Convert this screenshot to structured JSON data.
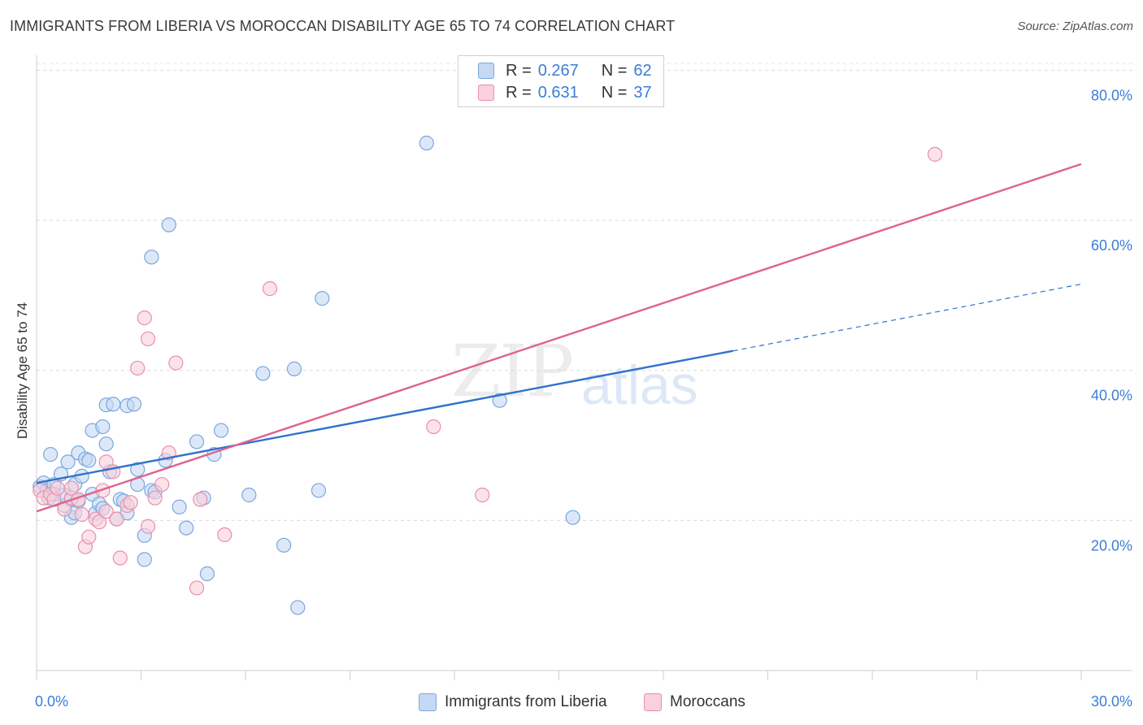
{
  "title": "IMMIGRANTS FROM LIBERIA VS MOROCCAN DISABILITY AGE 65 TO 74 CORRELATION CHART",
  "source": "Source: ZipAtlas.com",
  "watermark": {
    "zip": "ZIP",
    "atlas": "atlas"
  },
  "legend": {
    "rows": [
      {
        "r_label": "R =",
        "r_value": "0.267",
        "n_label": "N =",
        "n_value": "62",
        "color": "#a9c6ee"
      },
      {
        "r_label": "R =",
        "r_value": "0.631",
        "n_label": "N =",
        "n_value": "37",
        "color": "#f6b8cb"
      }
    ]
  },
  "bottom_legend": [
    {
      "label": "Immigrants from Liberia",
      "color": "#a9c6ee"
    },
    {
      "label": "Moroccans",
      "color": "#f6b8cb"
    }
  ],
  "chart_data": {
    "type": "scatter",
    "title": "IMMIGRANTS FROM LIBERIA VS MOROCCAN DISABILITY AGE 65 TO 74 CORRELATION CHART",
    "xlabel": "",
    "ylabel": "Disability Age 65 to 74",
    "xlim": [
      0,
      30
    ],
    "ylim": [
      0,
      82
    ],
    "x_ticks": [
      {
        "value": 0,
        "label": "0.0%"
      },
      {
        "value": 30,
        "label": "30.0%"
      }
    ],
    "y_ticks": [
      {
        "value": 20,
        "label": "20.0%"
      },
      {
        "value": 40,
        "label": "40.0%"
      },
      {
        "value": 60,
        "label": "60.0%"
      },
      {
        "value": 80,
        "label": "80.0%"
      }
    ],
    "grid": true,
    "legend_position": "top-center",
    "series": [
      {
        "name": "Immigrants from Liberia",
        "color": "#7aa6e0",
        "fill": "#c5d9f4",
        "line_color": "#2f72cc",
        "trend": {
          "x0": 0,
          "y0": 25.0,
          "x1": 20.0,
          "y1": 42.6,
          "dash_to_x": 30.0,
          "dash_to_y": 51.5
        },
        "points": [
          [
            0.1,
            24.5
          ],
          [
            0.2,
            25.0
          ],
          [
            0.3,
            24.0
          ],
          [
            0.4,
            28.8
          ],
          [
            0.5,
            24.8
          ],
          [
            0.5,
            23.5
          ],
          [
            0.7,
            26.2
          ],
          [
            0.8,
            22.0
          ],
          [
            0.8,
            23.4
          ],
          [
            0.9,
            27.8
          ],
          [
            1.0,
            20.4
          ],
          [
            1.0,
            22.8
          ],
          [
            1.1,
            24.8
          ],
          [
            1.1,
            21.0
          ],
          [
            1.2,
            22.6
          ],
          [
            1.2,
            29.0
          ],
          [
            1.3,
            25.9
          ],
          [
            1.4,
            28.2
          ],
          [
            1.5,
            28.0
          ],
          [
            1.6,
            23.5
          ],
          [
            1.6,
            32.0
          ],
          [
            1.7,
            21.0
          ],
          [
            1.8,
            22.2
          ],
          [
            1.9,
            32.5
          ],
          [
            1.9,
            21.6
          ],
          [
            2.0,
            30.2
          ],
          [
            2.0,
            35.4
          ],
          [
            2.1,
            26.5
          ],
          [
            2.2,
            35.5
          ],
          [
            2.3,
            20.2
          ],
          [
            2.4,
            22.8
          ],
          [
            2.5,
            22.6
          ],
          [
            2.6,
            35.3
          ],
          [
            2.6,
            21.0
          ],
          [
            2.8,
            35.5
          ],
          [
            2.9,
            24.8
          ],
          [
            2.9,
            26.8
          ],
          [
            3.1,
            18.0
          ],
          [
            3.1,
            14.8
          ],
          [
            3.3,
            24.0
          ],
          [
            3.3,
            55.1
          ],
          [
            3.4,
            23.8
          ],
          [
            3.7,
            28.0
          ],
          [
            3.8,
            59.4
          ],
          [
            4.1,
            21.8
          ],
          [
            4.3,
            19.0
          ],
          [
            4.6,
            30.5
          ],
          [
            4.8,
            23.0
          ],
          [
            4.9,
            12.9
          ],
          [
            5.1,
            28.8
          ],
          [
            5.3,
            32.0
          ],
          [
            6.1,
            23.4
          ],
          [
            6.5,
            39.6
          ],
          [
            7.1,
            16.7
          ],
          [
            7.4,
            40.2
          ],
          [
            7.5,
            8.4
          ],
          [
            8.1,
            24.0
          ],
          [
            8.2,
            49.6
          ],
          [
            11.2,
            70.3
          ],
          [
            13.3,
            36.0
          ],
          [
            15.4,
            20.4
          ],
          [
            0.35,
            23.0
          ]
        ]
      },
      {
        "name": "Moroccans",
        "color": "#ea8fab",
        "fill": "#f9d0dc",
        "line_color": "#e0628d",
        "trend": {
          "x0": 0,
          "y0": 21.2,
          "x1": 30.0,
          "y1": 67.5
        },
        "points": [
          [
            0.1,
            24.0
          ],
          [
            0.2,
            23.0
          ],
          [
            0.4,
            23.5
          ],
          [
            0.5,
            22.8
          ],
          [
            0.6,
            24.3
          ],
          [
            0.8,
            21.5
          ],
          [
            1.0,
            23.0
          ],
          [
            1.0,
            24.3
          ],
          [
            1.2,
            22.8
          ],
          [
            1.3,
            20.8
          ],
          [
            1.4,
            16.5
          ],
          [
            1.5,
            17.8
          ],
          [
            1.7,
            20.2
          ],
          [
            1.8,
            19.8
          ],
          [
            1.9,
            24.0
          ],
          [
            2.0,
            21.2
          ],
          [
            2.0,
            27.8
          ],
          [
            2.2,
            26.5
          ],
          [
            2.3,
            20.2
          ],
          [
            2.4,
            15.0
          ],
          [
            2.6,
            22.0
          ],
          [
            2.7,
            22.4
          ],
          [
            2.9,
            40.3
          ],
          [
            3.1,
            47.0
          ],
          [
            3.2,
            44.2
          ],
          [
            3.2,
            19.2
          ],
          [
            3.4,
            23.0
          ],
          [
            3.6,
            24.8
          ],
          [
            3.8,
            29.0
          ],
          [
            4.0,
            41.0
          ],
          [
            4.6,
            11.0
          ],
          [
            4.7,
            22.8
          ],
          [
            5.4,
            18.1
          ],
          [
            6.7,
            50.9
          ],
          [
            11.4,
            32.5
          ],
          [
            12.8,
            23.4
          ],
          [
            25.8,
            68.8
          ]
        ]
      }
    ]
  }
}
